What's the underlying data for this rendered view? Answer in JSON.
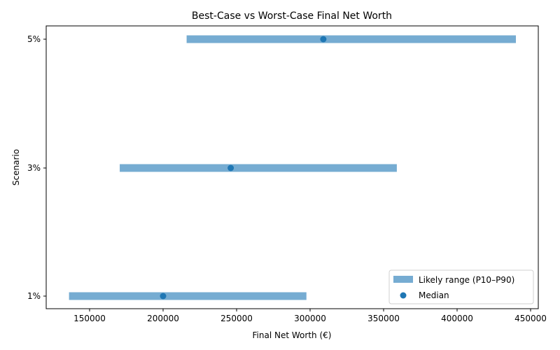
{
  "chart_data": {
    "type": "range-dot",
    "title": "Best-Case vs Worst-Case Final Net Worth",
    "xlabel": "Final Net Worth (€)",
    "ylabel": "Scenario",
    "categories": [
      "1%",
      "3%",
      "5%"
    ],
    "series": [
      {
        "name": "Likely range (P10–P90)",
        "kind": "range",
        "color": "#76acd2",
        "low": [
          136000,
          170500,
          216000
        ],
        "high": [
          297500,
          359000,
          440000
        ]
      },
      {
        "name": "Median",
        "kind": "scatter",
        "color": "#1f77b4",
        "values": [
          200000,
          246000,
          309000
        ]
      }
    ],
    "xlim": [
      120000,
      456000
    ],
    "xticks": [
      150000,
      200000,
      250000,
      300000,
      350000,
      400000,
      450000
    ],
    "xtick_labels": [
      "150000",
      "200000",
      "250000",
      "300000",
      "350000",
      "400000",
      "450000"
    ],
    "grid": false,
    "legend_position": "lower right"
  },
  "legend": {
    "range_label": "Likely range (P10–P90)",
    "median_label": "Median"
  }
}
